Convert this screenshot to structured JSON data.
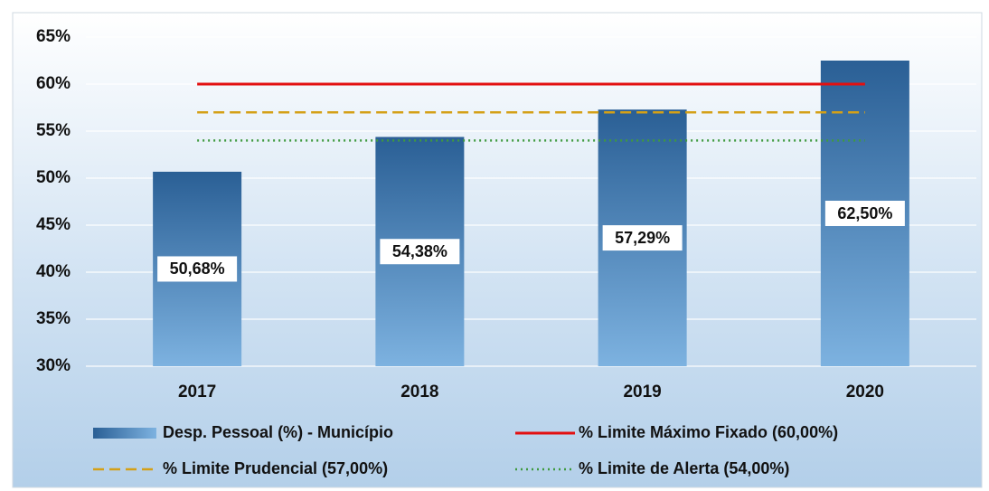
{
  "chart_data": {
    "type": "bar",
    "categories": [
      "2017",
      "2018",
      "2019",
      "2020"
    ],
    "series": [
      {
        "name": "Desp. Pessoal (%) - Município",
        "type": "bar",
        "color": "#2f6ca6",
        "values": [
          50.68,
          54.38,
          57.29,
          62.5
        ],
        "value_labels": [
          "50,68%",
          "54,38%",
          "57,29%",
          "62,50%"
        ]
      },
      {
        "name": "% Limite Máximo Fixado (60,00%)",
        "type": "line",
        "color": "#e31010",
        "dash": "solid",
        "values": [
          60,
          60,
          60,
          60
        ]
      },
      {
        "name": "% Limite Prudencial (57,00%)",
        "type": "line",
        "color": "#d4a017",
        "dash": "dashed",
        "values": [
          57,
          57,
          57,
          57
        ]
      },
      {
        "name": "% Limite de Alerta (54,00%)",
        "type": "line",
        "color": "#3f9a3f",
        "dash": "dotted",
        "values": [
          54,
          54,
          54,
          54
        ]
      }
    ],
    "ylim": [
      30,
      65
    ],
    "yticks": [
      {
        "value": 30,
        "label": "30%"
      },
      {
        "value": 35,
        "label": "35%"
      },
      {
        "value": 40,
        "label": "40%"
      },
      {
        "value": 45,
        "label": "45%"
      },
      {
        "value": 50,
        "label": "50%"
      },
      {
        "value": 55,
        "label": "55%"
      },
      {
        "value": 60,
        "label": "60%"
      },
      {
        "value": 65,
        "label": "65%"
      }
    ],
    "grid": true
  }
}
